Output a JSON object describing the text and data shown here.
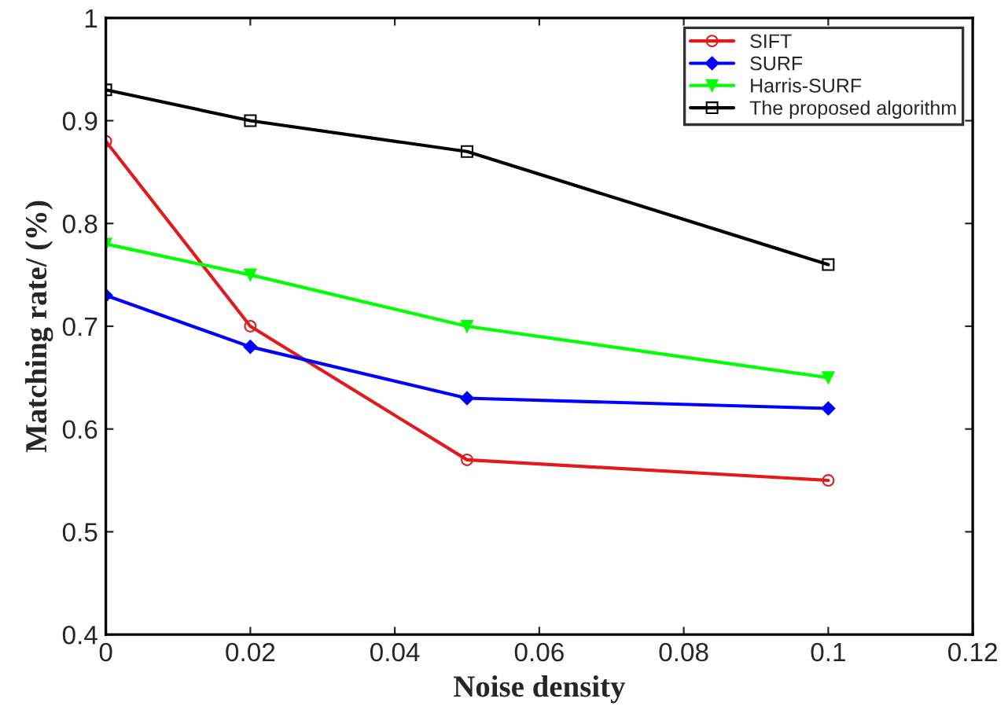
{
  "chart_data": {
    "type": "line",
    "xlabel": "Noise density",
    "ylabel": "Matching rate/ (%)",
    "x": [
      0,
      0.02,
      0.05,
      0.1
    ],
    "series": [
      {
        "name": "SIFT",
        "color": "#e31a1c",
        "marker": "circle",
        "values": [
          0.88,
          0.7,
          0.57,
          0.55
        ]
      },
      {
        "name": "SURF",
        "color": "#0000ff",
        "marker": "diamond",
        "values": [
          0.73,
          0.68,
          0.63,
          0.62
        ]
      },
      {
        "name": "Harris-SURF",
        "color": "#00ff00",
        "marker": "triangle",
        "values": [
          0.78,
          0.75,
          0.7,
          0.65
        ]
      },
      {
        "name": "The proposed algorithm",
        "color": "#000000",
        "marker": "square",
        "values": [
          0.93,
          0.9,
          0.87,
          0.76
        ]
      }
    ],
    "xlim": [
      0,
      0.12
    ],
    "xticks": [
      0,
      0.02,
      0.04,
      0.06,
      0.08,
      0.1,
      0.12
    ],
    "ylim": [
      0.4,
      1
    ],
    "yticks": [
      0.4,
      0.5,
      0.6,
      0.7,
      0.8,
      0.9,
      1
    ],
    "grid": false,
    "legend": "top right",
    "line_style": "solid"
  }
}
